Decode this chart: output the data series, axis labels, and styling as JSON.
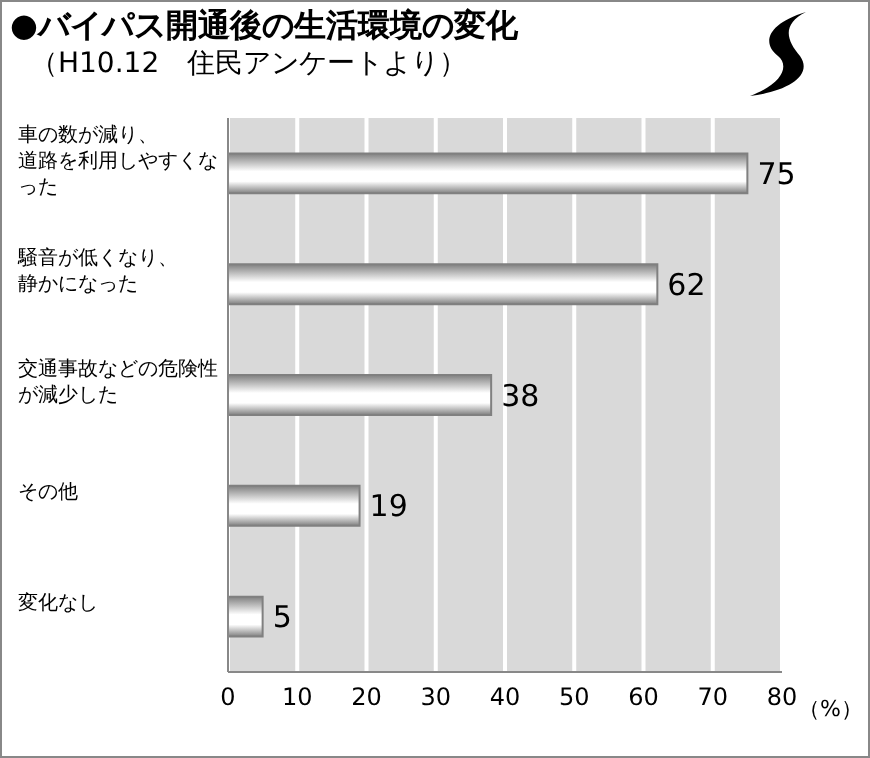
{
  "chart_data": {
    "type": "bar",
    "orientation": "horizontal",
    "title": "●バイパス開通後の生活環境の変化",
    "subtitle": "（H10.12　住民アンケートより）",
    "xlabel": "（%）",
    "categories": [
      "車の数が減り、道路を利用しやすくなった",
      "騒音が低くなり、静かになった",
      "交通事故などの危険性が減少した",
      "その他",
      "変化なし"
    ],
    "values": [
      75,
      62,
      38,
      19,
      5
    ],
    "color": "#808080",
    "data_labels": true,
    "xlim": [
      0,
      80
    ],
    "xticks": [
      0,
      10,
      20,
      30,
      40,
      50,
      60,
      70,
      80
    ],
    "grid": "x",
    "legend": false
  }
}
